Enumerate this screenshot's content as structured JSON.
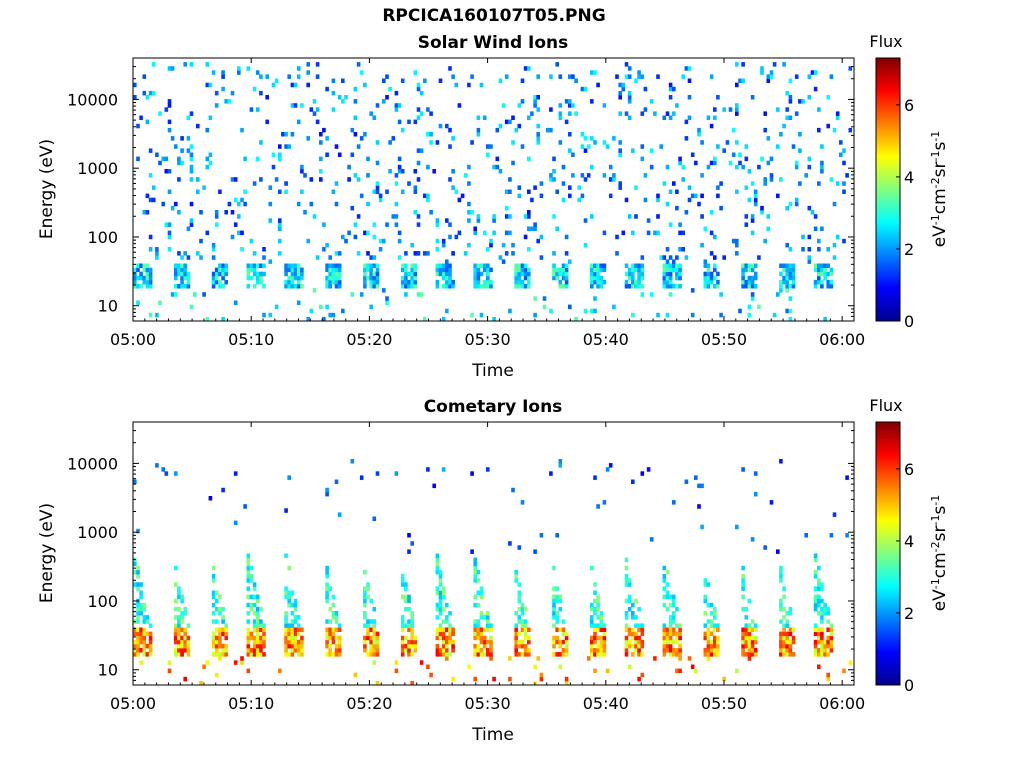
{
  "figure": {
    "title": "RPCICA160107T05.PNG"
  },
  "chart_data": [
    {
      "type": "heatmap",
      "title": "Solar Wind Ions",
      "xlabel": "Time",
      "ylabel": "Energy (eV)",
      "x_range": [
        "05:00",
        "06:01"
      ],
      "x_ticks": [
        "05:00",
        "05:10",
        "05:20",
        "05:30",
        "05:40",
        "05:50",
        "06:00"
      ],
      "y_scale": "log",
      "y_range": [
        6,
        40000
      ],
      "y_ticks": [
        10,
        100,
        1000,
        10000
      ],
      "y_tick_labels": [
        "10",
        "100",
        "1000",
        "10000"
      ],
      "colorbar": {
        "title": "Flux",
        "label": "eV-1cm-2sr-1s-1",
        "range": [
          0,
          7.3
        ],
        "ticks": [
          0,
          2,
          4,
          6
        ],
        "colormap": "jet"
      },
      "pattern": {
        "period_minutes": 3.2,
        "band_energy_eV": [
          18,
          40
        ],
        "band_flux": [
          1.5,
          3.5
        ],
        "background_energy_eV": [
          40,
          35000
        ],
        "background_flux": [
          1.0,
          2.8
        ]
      },
      "grid": false,
      "legend": "none"
    },
    {
      "type": "heatmap",
      "title": "Cometary Ions",
      "xlabel": "Time",
      "ylabel": "Energy (eV)",
      "x_range": [
        "05:00",
        "06:01"
      ],
      "x_ticks": [
        "05:00",
        "05:10",
        "05:20",
        "05:30",
        "05:40",
        "05:50",
        "06:00"
      ],
      "y_scale": "log",
      "y_range": [
        6,
        40000
      ],
      "y_ticks": [
        10,
        100,
        1000,
        10000
      ],
      "y_tick_labels": [
        "10",
        "100",
        "1000",
        "10000"
      ],
      "colorbar": {
        "title": "Flux",
        "label": "eV-1cm-2sr-1s-1",
        "range": [
          0,
          7.3
        ],
        "ticks": [
          0,
          2,
          4,
          6
        ],
        "colormap": "jet"
      },
      "pattern": {
        "period_minutes": 3.2,
        "band_energy_eV": [
          15,
          40
        ],
        "band_flux": [
          4.0,
          6.5
        ],
        "tail_energy_eV": [
          40,
          500
        ],
        "tail_flux": [
          2.2,
          3.8
        ],
        "background_energy_eV": [
          500,
          12000
        ],
        "background_flux": [
          0.8,
          2.2
        ]
      },
      "grid": false,
      "legend": "none"
    }
  ]
}
